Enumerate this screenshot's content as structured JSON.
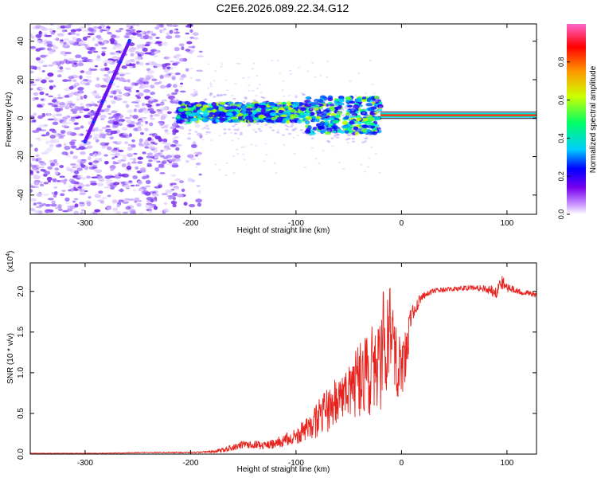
{
  "title": "C2E6.2026.089.22.34.G12",
  "chart_data": [
    {
      "type": "heatmap",
      "title": "C2E6.2026.089.22.34.G12",
      "xlabel": "Height of straight line (km)",
      "ylabel": "Frequency (Hz)",
      "xlim": [
        -352,
        128
      ],
      "ylim": [
        -50,
        49
      ],
      "xticks": [
        -300,
        -200,
        -100,
        0,
        100
      ],
      "yticks": [
        -40,
        -20,
        0,
        20,
        40
      ],
      "colorbar": {
        "label": "Normalized spectral amplitude",
        "range": [
          0,
          1
        ],
        "ticks": [
          "0.0",
          "0.2",
          "0.4",
          "0.6",
          "0.8"
        ],
        "tick_values": [
          0.0,
          0.2,
          0.4,
          0.6,
          0.8
        ],
        "colors": [
          "#ffffff",
          "#cc99ff",
          "#7700ee",
          "#0000ff",
          "#00ccff",
          "#00ff66",
          "#ccff00",
          "#ff9900",
          "#ff0000",
          "#ff66cc"
        ]
      },
      "regions": [
        {
          "name": "noise",
          "x": [
            -352,
            -190
          ],
          "freq_range": [
            -50,
            49
          ],
          "amplitude": 0.1
        },
        {
          "name": "diagonal-track",
          "x": [
            -300,
            -258
          ],
          "freq": [
            -12,
            40
          ],
          "amplitude": 0.2
        },
        {
          "name": "tracked-band",
          "x": [
            -212,
            -20
          ],
          "freq_center": 3,
          "freq_halfwidth": 5,
          "amplitude": 0.35
        },
        {
          "name": "open-loop-line",
          "x": [
            -20,
            128
          ],
          "freq": 1.5,
          "amplitude": 0.9
        }
      ]
    },
    {
      "type": "line",
      "xlabel": "Height of straight line (km)",
      "ylabel": "SNR (10 * v/v)",
      "yscale_label": "(x10^4)",
      "yscale_base": "(x10",
      "yscale_exp": "4",
      "xlim": [
        -352,
        128
      ],
      "ylim": [
        0,
        2.35
      ],
      "xticks": [
        -300,
        -200,
        -100,
        0,
        100
      ],
      "yticks": [
        0.0,
        0.5,
        1.0,
        1.5,
        2.0
      ],
      "ytick_labels": [
        "0.0",
        "0.5",
        "1.0",
        "1.5",
        "2.0"
      ],
      "series": [
        {
          "name": "SNR",
          "color": "#e8231e",
          "x": [
            -352,
            -320,
            -280,
            -240,
            -200,
            -180,
            -170,
            -160,
            -150,
            -140,
            -130,
            -120,
            -110,
            -100,
            -90,
            -80,
            -70,
            -60,
            -50,
            -40,
            -30,
            -25,
            -20,
            -15,
            -10,
            -5,
            0,
            5,
            10,
            15,
            20,
            25,
            30,
            40,
            50,
            60,
            70,
            80,
            90,
            95,
            100,
            110,
            120,
            128
          ],
          "y": [
            0.01,
            0.01,
            0.01,
            0.02,
            0.02,
            0.03,
            0.05,
            0.08,
            0.12,
            0.12,
            0.1,
            0.13,
            0.18,
            0.22,
            0.3,
            0.42,
            0.55,
            0.65,
            0.8,
            0.9,
            1.0,
            1.1,
            1.2,
            1.4,
            1.7,
            1.2,
            1.0,
            1.3,
            1.75,
            1.85,
            1.93,
            1.98,
            2.0,
            2.02,
            2.03,
            2.04,
            2.05,
            2.03,
            2.0,
            2.12,
            2.05,
            2.0,
            1.98,
            1.95
          ],
          "noise": [
            0.003,
            0.003,
            0.004,
            0.005,
            0.008,
            0.015,
            0.03,
            0.04,
            0.05,
            0.05,
            0.05,
            0.06,
            0.08,
            0.1,
            0.15,
            0.22,
            0.28,
            0.32,
            0.38,
            0.45,
            0.55,
            0.6,
            0.7,
            0.7,
            0.6,
            0.5,
            0.35,
            0.3,
            0.12,
            0.08,
            0.05,
            0.04,
            0.035,
            0.03,
            0.03,
            0.03,
            0.03,
            0.05,
            0.08,
            0.1,
            0.06,
            0.04,
            0.03,
            0.03
          ]
        }
      ]
    }
  ]
}
